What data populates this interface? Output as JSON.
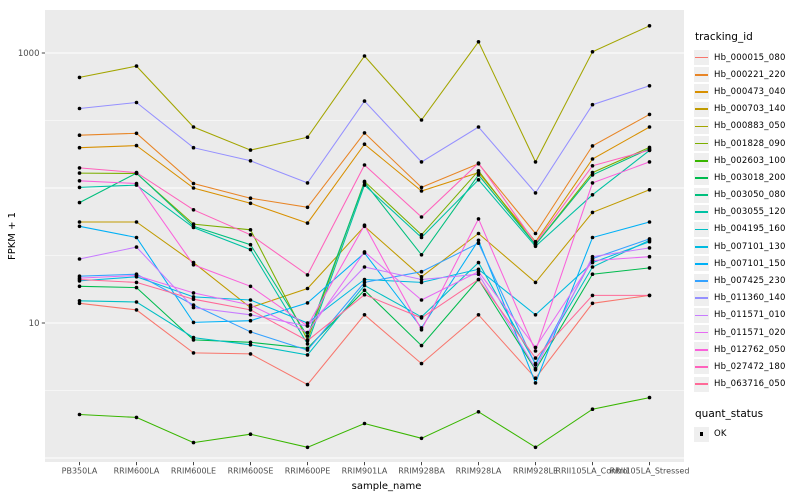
{
  "figure": {
    "background": "#FFFFFF",
    "panel_background": "#EBEBEB",
    "grid_color": "#FFFFFF",
    "tick_mark_color": "#333333",
    "tick_label_color": "#4D4D4D",
    "axis_title_color": "#000000",
    "point_color": "#000000",
    "legend_key_background": "#EFEFEF"
  },
  "axis": {
    "x_title": "sample_name",
    "y_title": "FPKM + 1",
    "y_ticks": [
      {
        "label": "1000",
        "value": 1000
      },
      {
        "label": "10",
        "value": 10
      }
    ]
  },
  "legend": {
    "tracking_title": "tracking_id",
    "quant_title": "quant_status",
    "quant_items": [
      "OK"
    ]
  },
  "chart_data": {
    "type": "line",
    "title": "",
    "xlabel": "sample_name",
    "ylabel": "FPKM + 1",
    "y_scale": "log10",
    "ylim": [
      0.85,
      2200
    ],
    "grid": true,
    "legend_position": "right",
    "quant_status": "OK",
    "gridlines_major": [
      1,
      10,
      100,
      1000
    ],
    "gridlines_minor": [
      3.162,
      31.62,
      316.23
    ],
    "categories": [
      "PB350LA",
      "RRIM600LA",
      "RRIM600LE",
      "RRIM600SE",
      "RRIM600PE",
      "RRIM901LA",
      "RRIM928BA",
      "RRIM928LA",
      "RRIM928LE",
      "RRII105LA_Control",
      "RRII105LA_Stressed"
    ],
    "series": [
      {
        "name": "Hb_000015_080",
        "color": "#F8766D",
        "values": [
          14,
          12.5,
          6.0,
          5.9,
          3.5,
          11.5,
          5.0,
          11.5,
          3.9,
          14,
          16
        ]
      },
      {
        "name": "Hb_000221_220",
        "color": "#E88526",
        "values": [
          246,
          254,
          108,
          84,
          72,
          256,
          101,
          151,
          46,
          205,
          351
        ]
      },
      {
        "name": "Hb_000473_040",
        "color": "#D89000",
        "values": [
          199,
          206,
          100,
          77,
          55,
          211,
          95,
          130,
          40,
          164,
          283
        ]
      },
      {
        "name": "Hb_000703_140",
        "color": "#C09B00",
        "values": [
          56,
          56,
          28,
          13,
          18,
          52,
          22,
          46,
          20,
          66,
          97
        ]
      },
      {
        "name": "Hb_000883_050",
        "color": "#A3A500",
        "values": [
          660,
          800,
          283,
          191,
          238,
          950,
          319,
          1210,
          156,
          1020,
          1590
        ]
      },
      {
        "name": "Hb_001828_090",
        "color": "#7CAE00",
        "values": [
          129,
          128,
          54,
          49,
          7.5,
          112,
          45,
          134,
          38,
          130,
          200
        ]
      },
      {
        "name": "Hb_002603_100",
        "color": "#39B600",
        "values": [
          2.1,
          2.0,
          1.3,
          1.5,
          1.2,
          1.8,
          1.4,
          2.2,
          1.2,
          2.3,
          2.8
        ]
      },
      {
        "name": "Hb_003018_200",
        "color": "#00BB4E",
        "values": [
          18.7,
          18.3,
          7.5,
          7.2,
          6.5,
          17.5,
          6.8,
          21,
          4.5,
          23,
          25.6
        ]
      },
      {
        "name": "Hb_003050_080",
        "color": "#00BF7D",
        "values": [
          78,
          129,
          52,
          38,
          8,
          110,
          32,
          125,
          38,
          125,
          195
        ]
      },
      {
        "name": "Hb_003055_120",
        "color": "#00C1A3",
        "values": [
          101,
          105,
          51,
          35,
          7,
          105,
          43,
          115,
          37,
          89,
          190
        ]
      },
      {
        "name": "Hb_004195_160",
        "color": "#00BFC4",
        "values": [
          14.6,
          14.3,
          7.8,
          6.9,
          5.8,
          19,
          11.1,
          28,
          5.0,
          26,
          41
        ]
      },
      {
        "name": "Hb_007101_130",
        "color": "#00BAE0",
        "values": [
          20.5,
          22,
          15.6,
          14.8,
          10,
          21,
          20,
          25,
          11.5,
          28,
          40
        ]
      },
      {
        "name": "Hb_007101_150",
        "color": "#00B0F6",
        "values": [
          52,
          43,
          10.1,
          10.4,
          14.1,
          33,
          9.2,
          41,
          3.6,
          43,
          56
        ]
      },
      {
        "name": "Hb_007425_230",
        "color": "#35A2FF",
        "values": [
          22.2,
          23,
          13.6,
          8.6,
          6.3,
          20,
          24,
          39,
          4.9,
          30,
          42
        ]
      },
      {
        "name": "Hb_011360_140",
        "color": "#9590FF",
        "values": [
          388,
          430,
          199,
          159,
          109,
          440,
          156,
          283,
          92,
          414,
          572
        ]
      },
      {
        "name": "Hb_011571_010",
        "color": "#C77CFF",
        "values": [
          29.8,
          36.5,
          13,
          11.5,
          9.5,
          26,
          21,
          23,
          4.6,
          31,
          36
        ]
      },
      {
        "name": "Hb_011571_020",
        "color": "#E76BF3",
        "values": [
          21.5,
          22.5,
          16.7,
          13.6,
          8.5,
          33.6,
          14.8,
          24,
          6.6,
          29,
          31
        ]
      },
      {
        "name": "Hb_012762_050",
        "color": "#FA62DB",
        "values": [
          113,
          108,
          27,
          18.7,
          9.5,
          53,
          8.9,
          59,
          6.2,
          109,
          156
        ]
      },
      {
        "name": "Hb_027472_180",
        "color": "#FF62BC",
        "values": [
          141,
          130,
          69,
          45,
          22.7,
          148,
          61,
          153,
          39,
          146,
          191
        ]
      },
      {
        "name": "Hb_063716_050",
        "color": "#FF6A98",
        "values": [
          21,
          20,
          15,
          12.5,
          7.4,
          16.2,
          10.9,
          21,
          5.5,
          16,
          16
        ]
      }
    ]
  }
}
